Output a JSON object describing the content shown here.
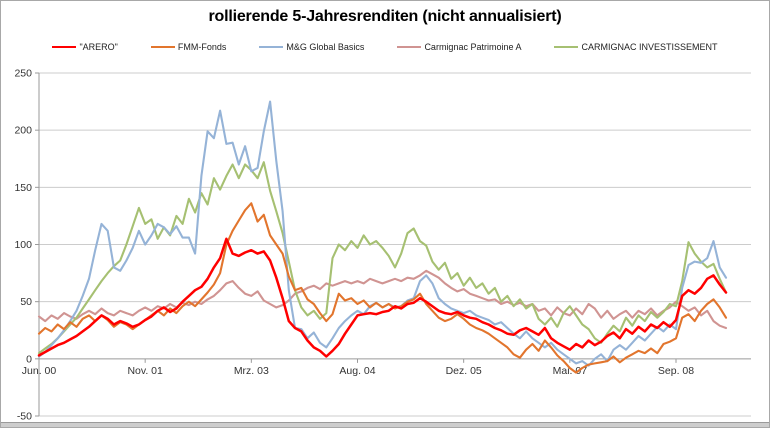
{
  "chart_data": {
    "type": "line",
    "title": "rollierende 5-Jahresrenditen (nicht annualisiert)",
    "legend_position": "top",
    "grid": true,
    "ylim": [
      -50,
      250
    ],
    "y_ticks": [
      -50,
      0,
      50,
      100,
      150,
      200,
      250
    ],
    "x_tick_months": [
      0,
      17,
      34,
      51,
      68,
      85,
      102
    ],
    "x_tick_labels": [
      "Jun. 00",
      "Nov. 01",
      "Mrz. 03",
      "Aug. 04",
      "Dez. 05",
      "Mai. 07",
      "Sep. 08"
    ],
    "x_unit": "months from Jun 2000, one data point per month",
    "axis_color": "#9a9a9a",
    "gridline_color": "#cccccc",
    "series": [
      {
        "name": "\"ARERO\"",
        "color": "#ff0000",
        "values": [
          3,
          6,
          9,
          12,
          14,
          17,
          20,
          24,
          28,
          33,
          38,
          35,
          30,
          33,
          31,
          28,
          30,
          34,
          37,
          42,
          45,
          41,
          44,
          50,
          55,
          60,
          63,
          70,
          80,
          88,
          105,
          92,
          90,
          93,
          95,
          92,
          94,
          86,
          71,
          53,
          33,
          27,
          24,
          16,
          10,
          7,
          2,
          7,
          13,
          22,
          30,
          38,
          39,
          40,
          39,
          41,
          42,
          46,
          44,
          48,
          49,
          53,
          50,
          46,
          42,
          40,
          39,
          41,
          38,
          36,
          35,
          32,
          30,
          27,
          25,
          22,
          21,
          25,
          27,
          24,
          21,
          27,
          18,
          14,
          11,
          8,
          13,
          10,
          16,
          12,
          15,
          20,
          23,
          18,
          26,
          22,
          28,
          24,
          30,
          27,
          32,
          28,
          34,
          55,
          60,
          57,
          62,
          70,
          73,
          65,
          58
        ]
      },
      {
        "name": "FMM-Fonds",
        "color": "#e2752d",
        "values": [
          22,
          27,
          24,
          30,
          26,
          32,
          28,
          35,
          38,
          33,
          38,
          34,
          28,
          32,
          30,
          26,
          30,
          34,
          38,
          42,
          38,
          44,
          40,
          46,
          50,
          46,
          52,
          58,
          65,
          75,
          100,
          112,
          121,
          130,
          136,
          120,
          126,
          108,
          100,
          92,
          72,
          60,
          62,
          52,
          48,
          40,
          33,
          39,
          57,
          51,
          53,
          48,
          51,
          45,
          49,
          45,
          48,
          44,
          46,
          50,
          52,
          57,
          48,
          42,
          36,
          33,
          35,
          39,
          35,
          30,
          27,
          25,
          22,
          18,
          14,
          10,
          4,
          1,
          8,
          13,
          7,
          16,
          10,
          3,
          -2,
          -8,
          -12,
          -8,
          -5,
          -4,
          -3,
          -2,
          2,
          -3,
          1,
          4,
          7,
          5,
          9,
          5,
          13,
          15,
          18,
          36,
          39,
          33,
          42,
          48,
          52,
          45,
          36
        ]
      },
      {
        "name": "M&G Global Basics",
        "color": "#95b3d7",
        "values": [
          2,
          6,
          12,
          18,
          25,
          33,
          42,
          55,
          70,
          95,
          118,
          112,
          80,
          77,
          86,
          97,
          112,
          100,
          108,
          118,
          115,
          109,
          116,
          106,
          106,
          92,
          160,
          199,
          193,
          217,
          188,
          189,
          170,
          186,
          164,
          167,
          199,
          225,
          173,
          129,
          60,
          27,
          26,
          18,
          23,
          14,
          10,
          18,
          27,
          33,
          38,
          42,
          39,
          46,
          49,
          45,
          48,
          45,
          46,
          51,
          53,
          68,
          73,
          66,
          53,
          48,
          44,
          42,
          40,
          42,
          38,
          36,
          34,
          30,
          32,
          27,
          22,
          18,
          24,
          18,
          14,
          10,
          14,
          8,
          4,
          0,
          -4,
          -2,
          -6,
          0,
          4,
          -2,
          8,
          12,
          8,
          14,
          20,
          16,
          22,
          28,
          24,
          30,
          26,
          62,
          82,
          85,
          84,
          88,
          103,
          80,
          71
        ]
      },
      {
        "name": "Carmignac Patrimoine A",
        "color": "#d09492",
        "values": [
          37,
          33,
          38,
          35,
          40,
          37,
          35,
          39,
          42,
          39,
          44,
          40,
          38,
          42,
          40,
          38,
          42,
          45,
          42,
          46,
          44,
          48,
          45,
          49,
          47,
          50,
          48,
          52,
          55,
          60,
          66,
          68,
          62,
          57,
          55,
          59,
          51,
          48,
          45,
          47,
          51,
          57,
          59,
          62,
          64,
          61,
          66,
          64,
          66,
          68,
          66,
          68,
          66,
          70,
          68,
          66,
          68,
          70,
          68,
          71,
          70,
          73,
          77,
          74,
          71,
          66,
          62,
          59,
          61,
          57,
          55,
          53,
          51,
          52,
          48,
          50,
          47,
          49,
          46,
          48,
          42,
          44,
          38,
          45,
          40,
          38,
          44,
          39,
          48,
          44,
          36,
          42,
          35,
          39,
          42,
          36,
          42,
          39,
          44,
          38,
          42,
          45,
          50,
          46,
          42,
          45,
          38,
          42,
          33,
          29,
          27
        ]
      },
      {
        "name": "CARMIGNAC INVESTISSEMENT",
        "color": "#a6c072",
        "values": [
          5,
          9,
          13,
          18,
          24,
          30,
          36,
          44,
          52,
          60,
          68,
          75,
          81,
          86,
          100,
          116,
          132,
          118,
          122,
          105,
          115,
          108,
          125,
          118,
          140,
          128,
          145,
          135,
          158,
          148,
          160,
          170,
          158,
          170,
          165,
          158,
          172,
          147,
          129,
          110,
          85,
          60,
          45,
          38,
          42,
          35,
          40,
          88,
          100,
          95,
          103,
          97,
          108,
          100,
          103,
          97,
          90,
          80,
          92,
          110,
          114,
          103,
          99,
          85,
          78,
          84,
          70,
          75,
          64,
          71,
          62,
          66,
          57,
          62,
          50,
          55,
          46,
          52,
          44,
          48,
          35,
          30,
          36,
          28,
          40,
          46,
          38,
          30,
          26,
          18,
          14,
          22,
          29,
          24,
          36,
          29,
          38,
          33,
          41,
          36,
          41,
          48,
          46,
          68,
          102,
          92,
          85,
          80,
          83,
          70,
          58
        ]
      }
    ]
  }
}
